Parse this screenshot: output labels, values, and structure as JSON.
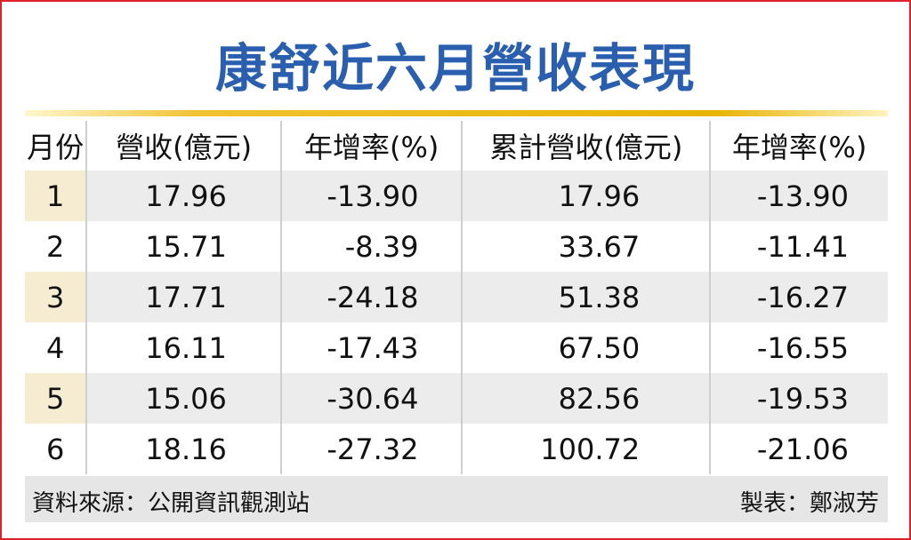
{
  "title": "康舒近六月營收表現",
  "table": {
    "header": [
      "月份",
      "營收(億元)",
      "年增率(%)",
      "累計營收(億元)",
      "年增率(%)"
    ],
    "rows": [
      [
        "1",
        "17.96",
        "-13.90",
        "17.96",
        "-13.90"
      ],
      [
        "2",
        "15.71",
        "-8.39",
        "33.67",
        "-11.41"
      ],
      [
        "3",
        "17.71",
        "-24.18",
        "51.38",
        "-16.27"
      ],
      [
        "4",
        "16.11",
        "-17.43",
        "67.50",
        "-16.55"
      ],
      [
        "5",
        "15.06",
        "-30.64",
        "82.56",
        "-19.53"
      ],
      [
        "6",
        "18.16",
        "-27.32",
        "100.72",
        "-21.06"
      ]
    ]
  },
  "footer": {
    "source": "資料來源：公開資訊觀測站",
    "author": "製表：鄭淑芳"
  }
}
